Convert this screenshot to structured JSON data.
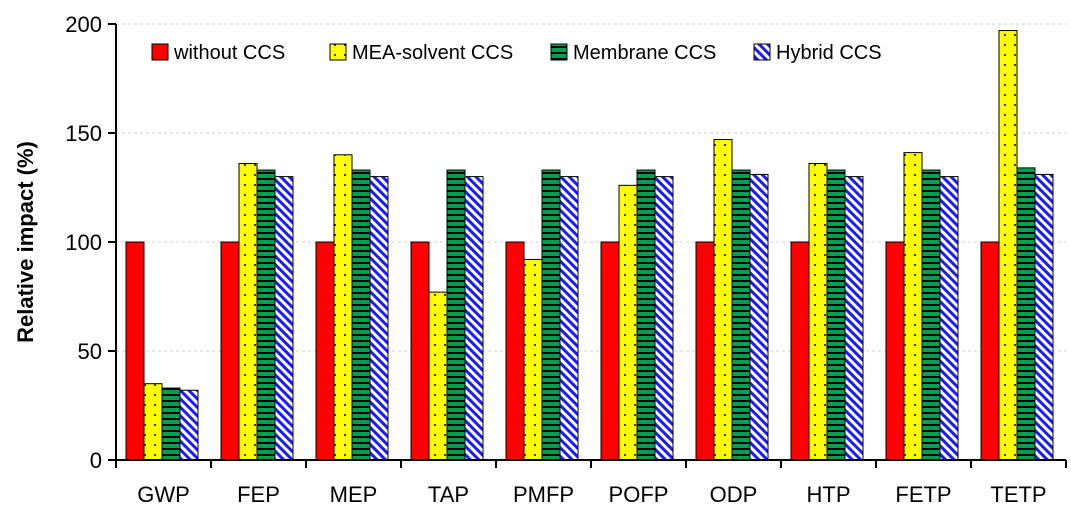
{
  "chart_data": {
    "type": "bar",
    "title": "",
    "xlabel": "",
    "ylabel": "Relative impact (%)",
    "ylim": [
      0,
      200
    ],
    "yticks": [
      0,
      50,
      100,
      150,
      200
    ],
    "grid": true,
    "legend_position": "top-left",
    "categories": [
      "GWP",
      "FEP",
      "MEP",
      "TAP",
      "PMFP",
      "POFP",
      "ODP",
      "HTP",
      "FETP",
      "TETP"
    ],
    "series": [
      {
        "name": "without CCS",
        "values": [
          100,
          100,
          100,
          100,
          100,
          100,
          100,
          100,
          100,
          100
        ],
        "color": "#ff0000",
        "pattern": "solid"
      },
      {
        "name": "MEA-solvent CCS",
        "values": [
          35,
          136,
          140,
          77,
          92,
          126,
          147,
          136,
          141,
          197
        ],
        "color": "#ffff00",
        "pattern": "dots"
      },
      {
        "name": "Membrane CCS",
        "values": [
          33,
          133,
          133,
          133,
          133,
          133,
          133,
          133,
          133,
          134
        ],
        "color": "#00a050",
        "pattern": "horizontal-lines"
      },
      {
        "name": "Hybrid CCS",
        "values": [
          32,
          130,
          130,
          130,
          130,
          130,
          131,
          130,
          130,
          131
        ],
        "color": "#1a1aff",
        "pattern": "diagonal-stripes"
      }
    ]
  }
}
